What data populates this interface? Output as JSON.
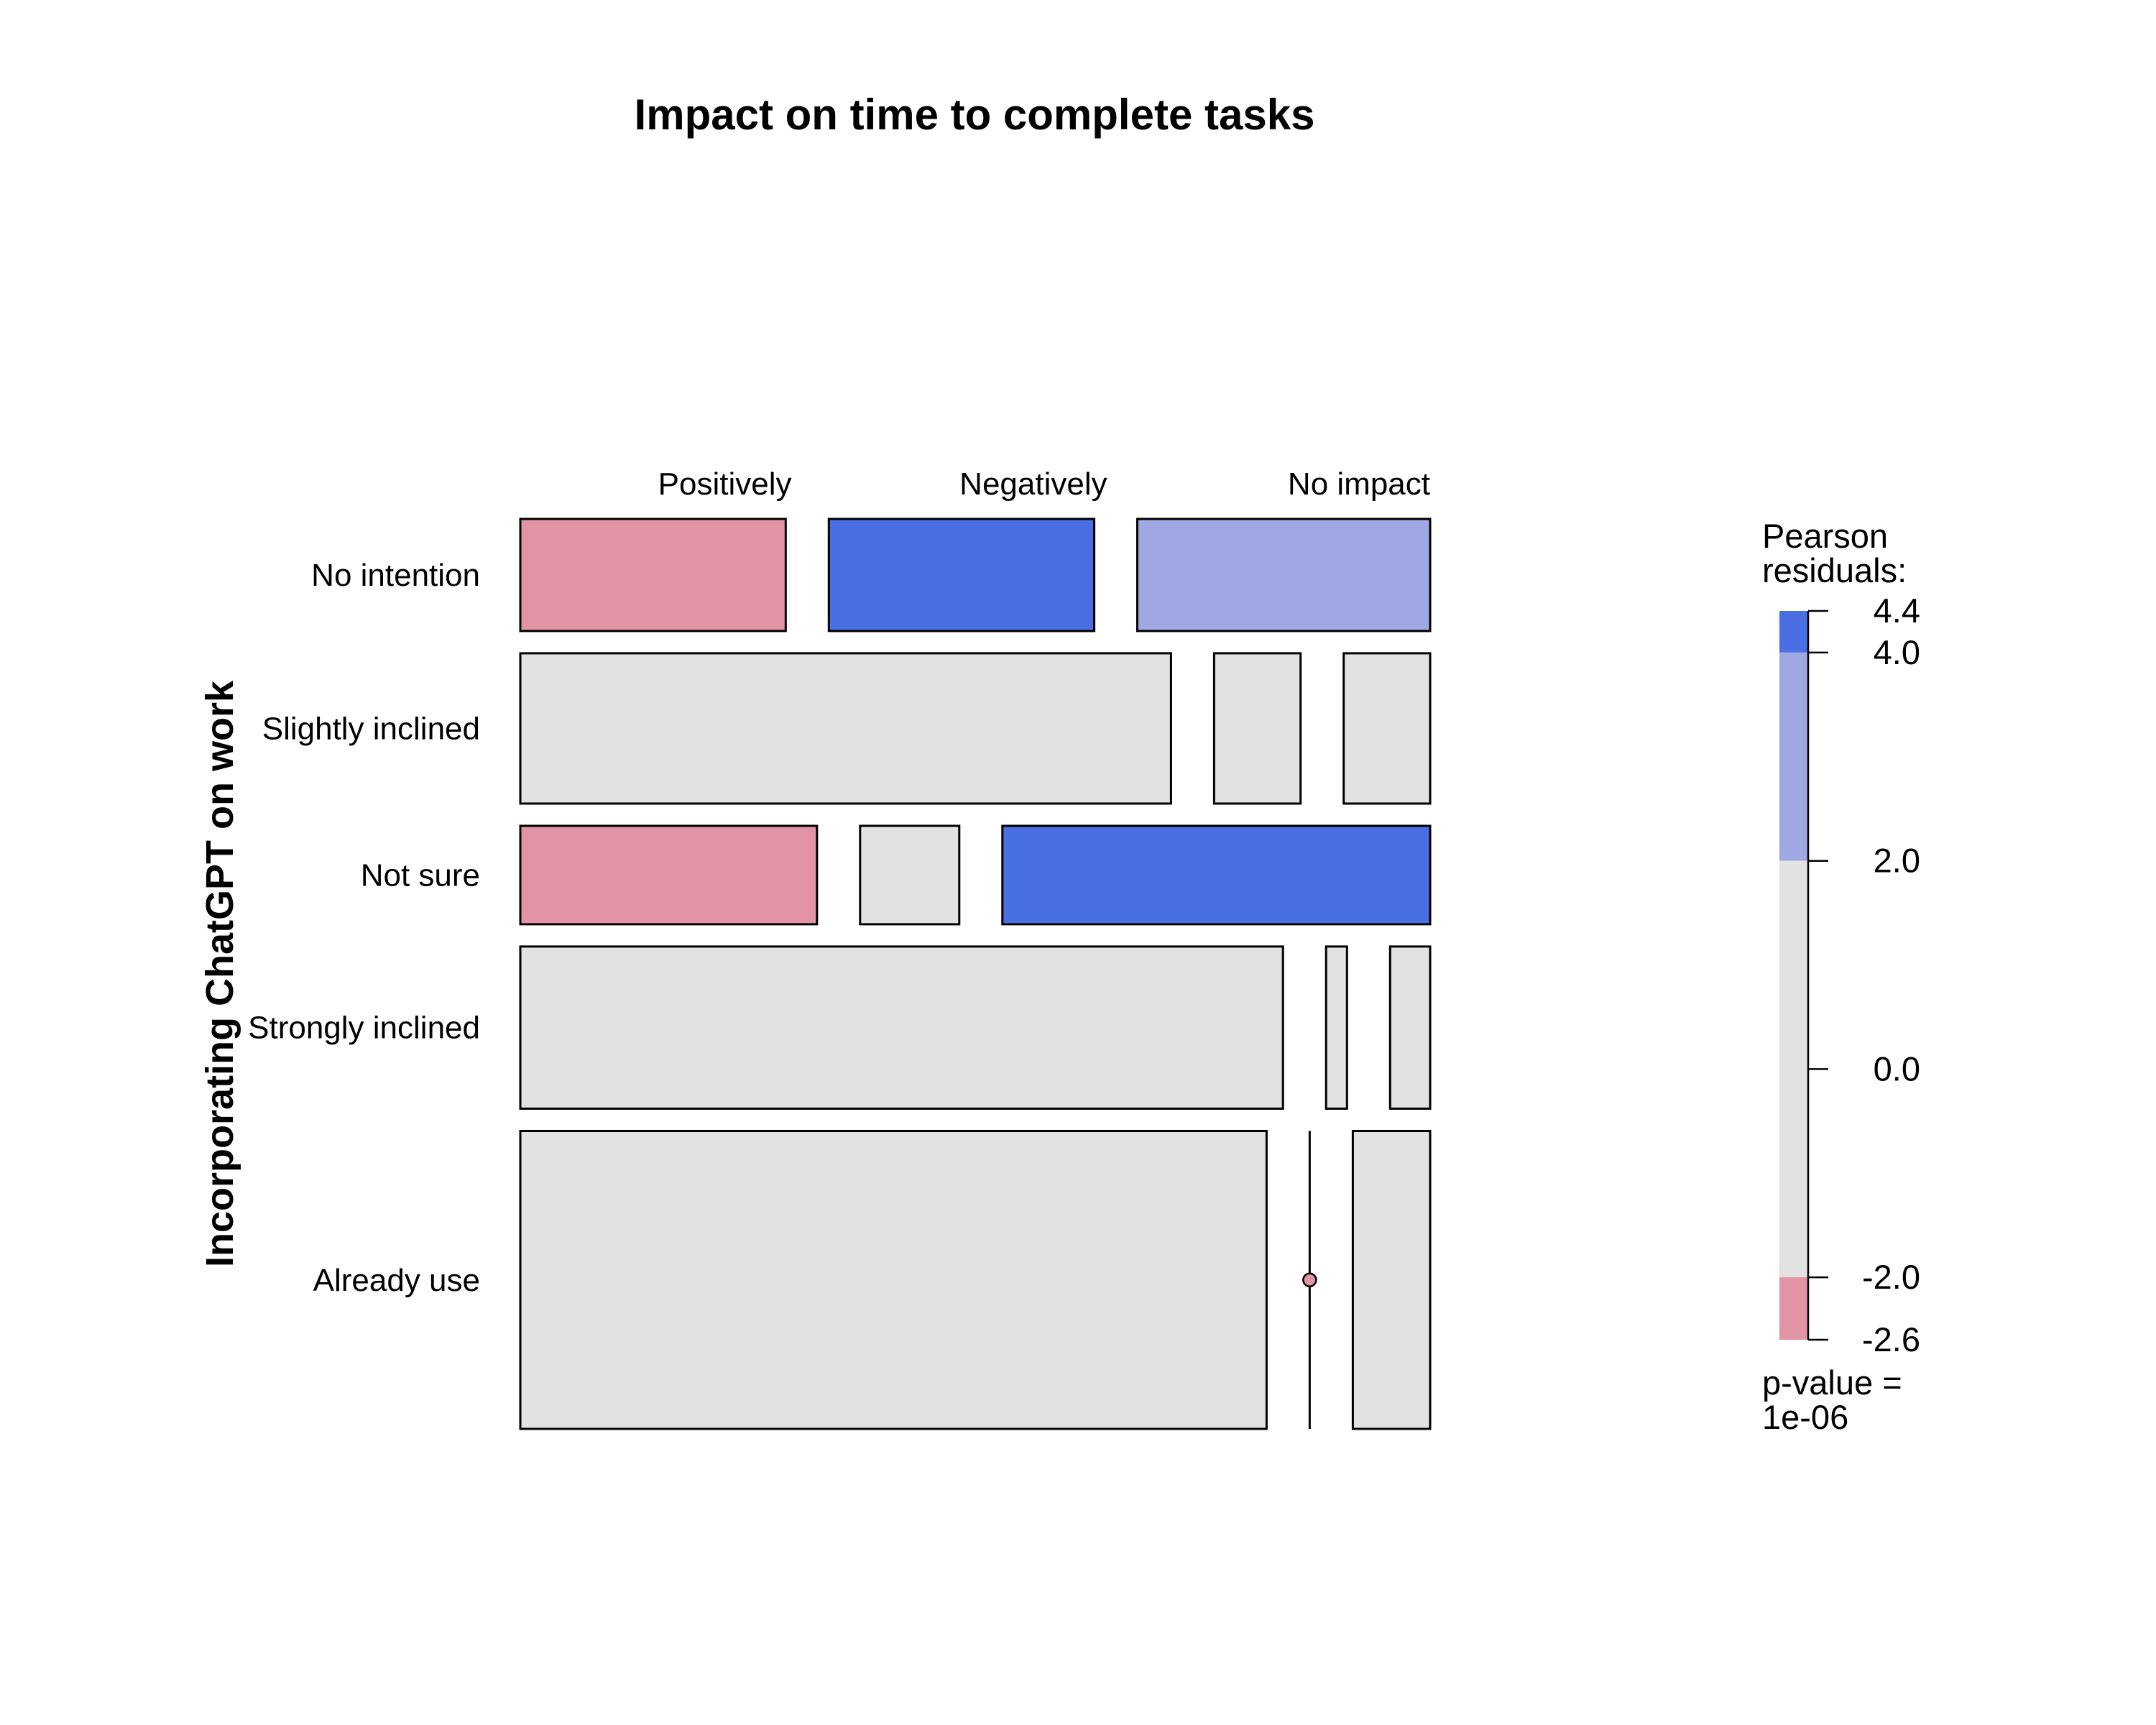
{
  "chart_data": {
    "type": "mosaic",
    "title": "Impact on time to complete tasks",
    "ylabel": "Incorporating ChatGPT on work",
    "xlabel": "",
    "columns": [
      "Positively",
      "Negatively",
      "No impact"
    ],
    "rows": [
      {
        "name": "No intention",
        "height_fraction": 0.123,
        "cells": [
          {
            "column": "Positively",
            "share": 0.29,
            "residual_band": "-2.6 to -2.0"
          },
          {
            "column": "Negatively",
            "share": 0.29,
            "residual_band": "4.0 to 4.4"
          },
          {
            "column": "No impact",
            "share": 0.32,
            "residual_band": "2.0 to 4.0"
          }
        ]
      },
      {
        "name": "Slightly inclined",
        "height_fraction": 0.165,
        "cells": [
          {
            "column": "Positively",
            "share": 0.715,
            "residual_band": "-2.0 to 2.0"
          },
          {
            "column": "Negatively",
            "share": 0.095,
            "residual_band": "-2.0 to 2.0"
          },
          {
            "column": "No impact",
            "share": 0.095,
            "residual_band": "-2.0 to 2.0"
          }
        ]
      },
      {
        "name": "Not sure",
        "height_fraction": 0.108,
        "cells": [
          {
            "column": "Positively",
            "share": 0.326,
            "residual_band": "-2.6 to -2.0"
          },
          {
            "column": "Negatively",
            "share": 0.109,
            "residual_band": "-2.0 to 2.0"
          },
          {
            "column": "No impact",
            "share": 0.47,
            "residual_band": "4.0 to 4.4"
          }
        ]
      },
      {
        "name": "Strongly inclined",
        "height_fraction": 0.178,
        "cells": [
          {
            "column": "Positively",
            "share": 0.838,
            "residual_band": "-2.0 to 2.0"
          },
          {
            "column": "Negatively",
            "share": 0.023,
            "residual_band": "-2.0 to 2.0"
          },
          {
            "column": "No impact",
            "share": 0.044,
            "residual_band": "-2.0 to 2.0"
          }
        ]
      },
      {
        "name": "Already use",
        "height_fraction": 0.327,
        "cells": [
          {
            "column": "Positively",
            "share": 0.82,
            "residual_band": "-2.0 to 2.0"
          },
          {
            "column": "Negatively",
            "share": 0.0,
            "residual_band": "-2.6 to -2.0"
          },
          {
            "column": "No impact",
            "share": 0.085,
            "residual_band": "-2.0 to 2.0"
          }
        ]
      }
    ],
    "legend": {
      "title_line1": "Pearson",
      "title_line2": "residuals:",
      "ticks": [
        "4.4",
        "4.0",
        "2.0",
        "0.0",
        "-2.0",
        "-2.6"
      ],
      "tick_values": [
        4.4,
        4.0,
        2.0,
        0.0,
        -2.0,
        -2.6
      ],
      "bands": [
        {
          "from": 4.0,
          "to": 4.4,
          "color": "#4a6fe3"
        },
        {
          "from": 2.0,
          "to": 4.0,
          "color": "#9fa8e2"
        },
        {
          "from": -2.0,
          "to": 2.0,
          "color": "#e2e2e2"
        },
        {
          "from": -2.6,
          "to": -2.0,
          "color": "#e294a5"
        }
      ],
      "pvalue_line1": "p-value =",
      "pvalue_line2": "1e-06"
    },
    "colors": {
      "strong_positive": "#4a6fe3",
      "positive": "#9fa8e2",
      "neutral": "#e2e2e2",
      "negative": "#e294a5",
      "border": "#000000"
    }
  }
}
